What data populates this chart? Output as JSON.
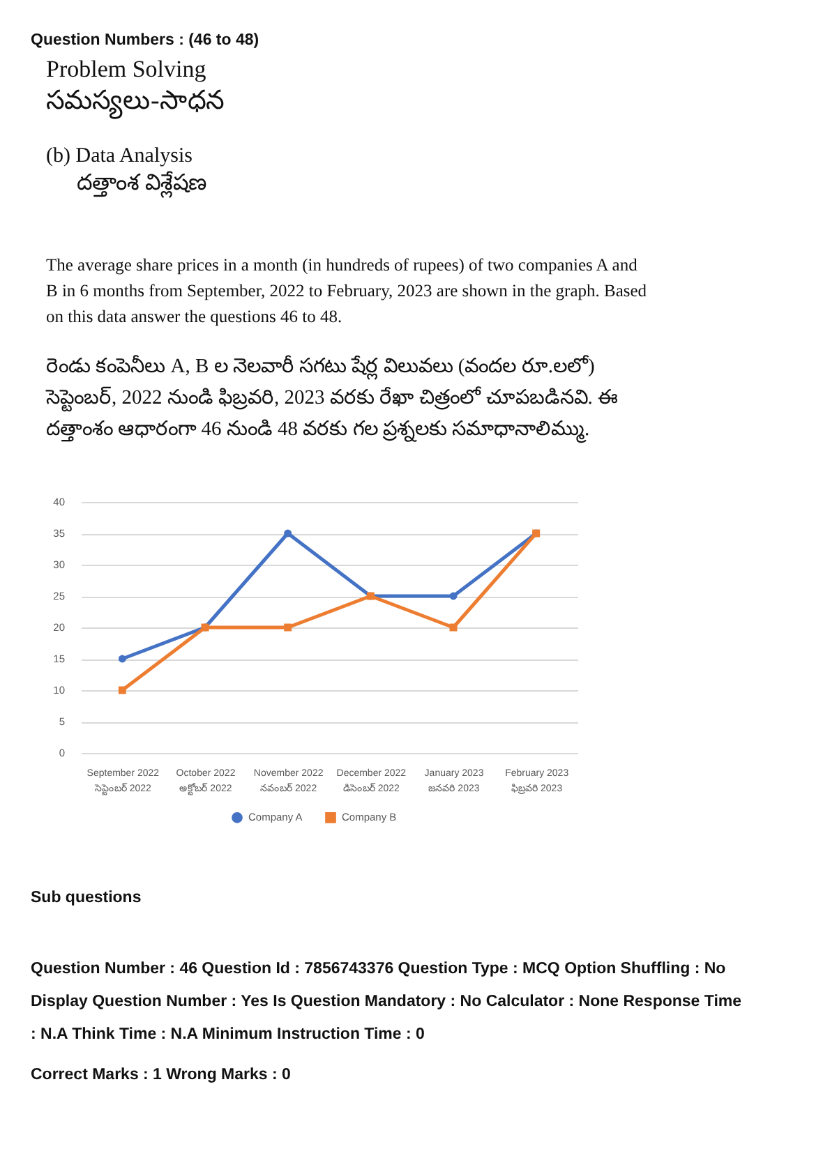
{
  "chart_data": {
    "type": "line",
    "categories": [
      "September 2022\nసెప్టెంబర్ 2022",
      "October 2022\nఅక్టోబర్ 2022",
      "November 2022\nనవంబర్ 2022",
      "December 2022\nడిసెంబర్ 2022",
      "January 2023\nజనవరి 2023",
      "February 2023\nఫిబ్రవరి 2023"
    ],
    "series": [
      {
        "name": "Company A",
        "color": "#4472c4",
        "marker": "circle",
        "values": [
          15,
          20,
          35,
          25,
          25,
          35
        ]
      },
      {
        "name": "Company B",
        "color": "#ed7d31",
        "marker": "square",
        "values": [
          10,
          20,
          20,
          25,
          20,
          35
        ]
      }
    ],
    "ylim": [
      0,
      40
    ],
    "yticks": [
      0,
      5,
      10,
      15,
      20,
      25,
      30,
      35,
      40
    ],
    "grid": "y",
    "legend": "bottom",
    "line_style": "solid",
    "annotations": [
      "Question Numbers : (46 to 48)",
      "Problem Solving",
      "సమస్యలు-సాధన",
      "(b) Data Analysis",
      "దత్తాంశ విశ్లేషణ",
      "The average share prices in a month (in hundreds of rupees) of two companies A and B in 6 months from September, 2022 to February, 2023 are shown in the graph. Based on this data answer the questions 46 to 48.",
      "రెండు కంపెనీలు A, B ల నెలవారీ సగటు షేర్ల విలువలు (వందల రూ.లలో) సెప్టెంబర్, 2022 నుండి ఫిబ్రవరి, 2023 వరకు రేఖా చిత్రంలో చూపబడినవి. ఈ దత్తాంశం ఆధారంగా 46 నుండి 48 వరకు గల ప్రశ్నలకు సమాధానాలిమ్ము.",
      "Sub questions",
      "Question Number : 46 Question Id : 7856743376 Question Type : MCQ Option Shuffling : No Display Question Number : Yes Is Question Mandatory : No Calculator : None Response Time : N.A Think Time : N.A Minimum Instruction Time : 0",
      "Correct Marks : 1 Wrong Marks : 0"
    ]
  }
}
